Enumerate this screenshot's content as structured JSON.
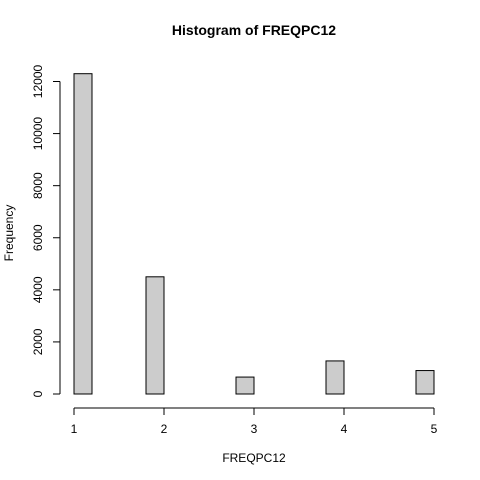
{
  "chart_data": {
    "type": "bar",
    "title": "Histogram of FREQPC12",
    "xlabel": "FREQPC12",
    "ylabel": "Frequency",
    "xlim": [
      1,
      5
    ],
    "ylim": [
      0,
      12500
    ],
    "grid": false,
    "x_ticks": [
      1,
      2,
      3,
      4,
      5
    ],
    "y_ticks": [
      0,
      2000,
      4000,
      6000,
      8000,
      10000,
      12000
    ],
    "bins": [
      {
        "start": 1.0,
        "end": 1.2,
        "count": 12300
      },
      {
        "start": 1.2,
        "end": 1.4,
        "count": 0
      },
      {
        "start": 1.4,
        "end": 1.6,
        "count": 0
      },
      {
        "start": 1.6,
        "end": 1.8,
        "count": 0
      },
      {
        "start": 1.8,
        "end": 2.0,
        "count": 4500
      },
      {
        "start": 2.0,
        "end": 2.2,
        "count": 0
      },
      {
        "start": 2.2,
        "end": 2.4,
        "count": 0
      },
      {
        "start": 2.4,
        "end": 2.6,
        "count": 0
      },
      {
        "start": 2.6,
        "end": 2.8,
        "count": 0
      },
      {
        "start": 2.8,
        "end": 3.0,
        "count": 650
      },
      {
        "start": 3.0,
        "end": 3.2,
        "count": 0
      },
      {
        "start": 3.2,
        "end": 3.4,
        "count": 0
      },
      {
        "start": 3.4,
        "end": 3.6,
        "count": 0
      },
      {
        "start": 3.6,
        "end": 3.8,
        "count": 0
      },
      {
        "start": 3.8,
        "end": 4.0,
        "count": 1270
      },
      {
        "start": 4.0,
        "end": 4.2,
        "count": 0
      },
      {
        "start": 4.2,
        "end": 4.4,
        "count": 0
      },
      {
        "start": 4.4,
        "end": 4.6,
        "count": 0
      },
      {
        "start": 4.6,
        "end": 4.8,
        "count": 0
      },
      {
        "start": 4.8,
        "end": 5.0,
        "count": 900
      }
    ],
    "colors": {
      "bar_fill": "#cccccc",
      "bar_stroke": "#000000",
      "axis": "#000000"
    }
  }
}
